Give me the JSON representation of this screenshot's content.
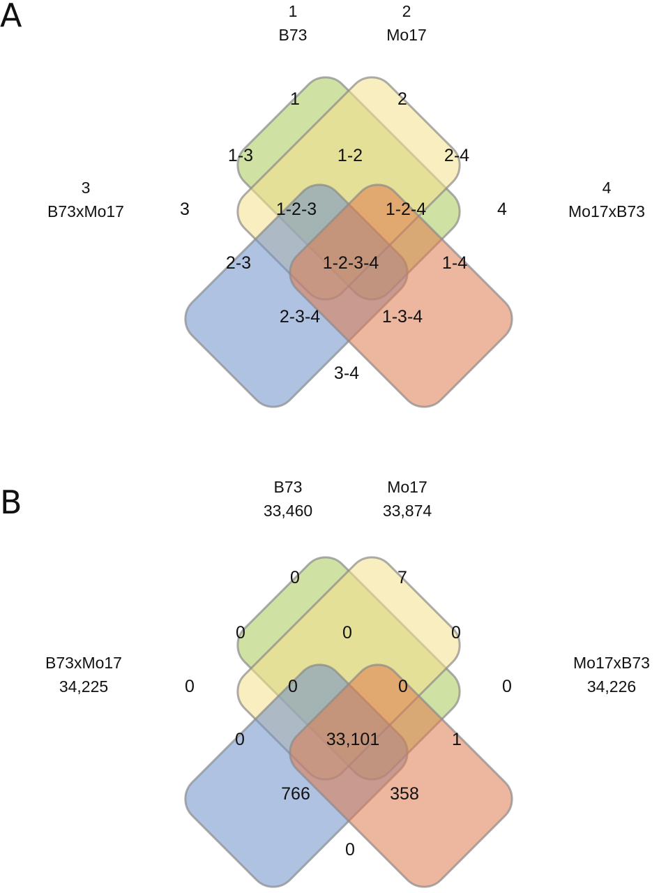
{
  "panels": [
    {
      "letter": "A",
      "set_labels": {
        "s1": [
          "1",
          "B73"
        ],
        "s2": [
          "2",
          "Mo17"
        ],
        "s3": [
          "3",
          "B73xMo17"
        ],
        "s4": [
          "4",
          "Mo17xB73"
        ]
      },
      "regions": {
        "1": "1",
        "2": "2",
        "3": "3",
        "4": "4",
        "1-2": "1-2",
        "1-3": "1-3",
        "2-4": "2-4",
        "1-2-3": "1-2-3",
        "1-2-4": "1-2-4",
        "2-3": "2-3",
        "1-2-3-4": "1-2-3-4",
        "1-4": "1-4",
        "2-3-4": "2-3-4",
        "1-3-4": "1-3-4",
        "3-4": "3-4"
      }
    },
    {
      "letter": "B",
      "set_labels": {
        "s1": [
          "B73",
          "33,460"
        ],
        "s2": [
          "Mo17",
          "33,874"
        ],
        "s3": [
          "B73xMo17",
          "34,225"
        ],
        "s4": [
          "Mo17xB73",
          "34,226"
        ]
      },
      "regions": {
        "1": "0",
        "2": "7",
        "3": "0",
        "4": "0",
        "1-2": "0",
        "1-3": "0",
        "2-4": "0",
        "1-2-3": "0",
        "1-2-4": "0",
        "2-3": "0",
        "1-2-3-4": "33,101",
        "1-4": "1",
        "2-3-4": "766",
        "1-3-4": "358",
        "3-4": "0"
      }
    }
  ],
  "colors": {
    "set1": "#a9c95a",
    "set2": "#f4e08c",
    "set3": "#6f8fc8",
    "set4": "#de7a4e",
    "outline": "#8a8a8a"
  }
}
